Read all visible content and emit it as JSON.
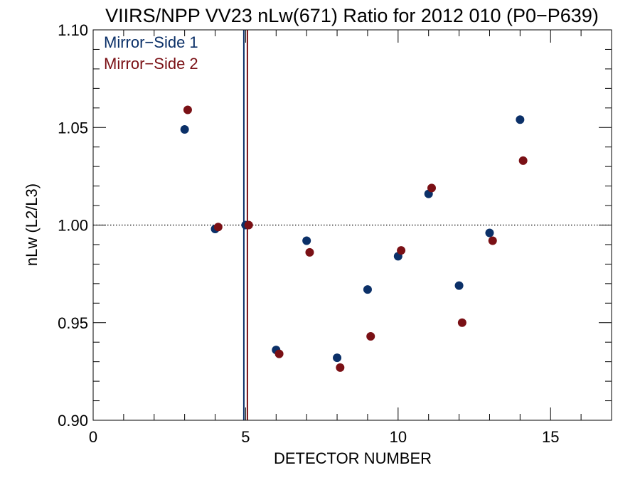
{
  "chart_data": {
    "type": "scatter",
    "title": "VIIRS/NPP VV23 nLw(671) Ratio for 2012 010 (P0−P639)",
    "xlabel": "DETECTOR NUMBER",
    "ylabel": "nLw (L2/L3)",
    "xlim": [
      0,
      17
    ],
    "ylim": [
      0.9,
      1.1
    ],
    "x_ticks": [
      0,
      5,
      10,
      15
    ],
    "x_tick_labels": [
      "0",
      "5",
      "10",
      "15"
    ],
    "y_ticks": [
      0.9,
      0.95,
      1.0,
      1.05,
      1.1
    ],
    "y_tick_labels": [
      "0.90",
      "0.95",
      "1.00",
      "1.05",
      "1.10"
    ],
    "reference_line_y": 1.0,
    "legend_position": "top-left",
    "series": [
      {
        "name": "Mirror−Side 1",
        "color": "#0b3068",
        "marker_vline_x": 5,
        "points": [
          {
            "x": 3,
            "y": 1.049
          },
          {
            "x": 4,
            "y": 0.998
          },
          {
            "x": 5,
            "y": 1.0
          },
          {
            "x": 6,
            "y": 0.936
          },
          {
            "x": 7,
            "y": 0.992
          },
          {
            "x": 8,
            "y": 0.932
          },
          {
            "x": 9,
            "y": 0.967
          },
          {
            "x": 10,
            "y": 0.984
          },
          {
            "x": 11,
            "y": 1.016
          },
          {
            "x": 12,
            "y": 0.969
          },
          {
            "x": 13,
            "y": 0.996
          },
          {
            "x": 14,
            "y": 1.054
          }
        ]
      },
      {
        "name": "Mirror−Side 2",
        "color": "#7a1015",
        "marker_vline_x": 5,
        "points": [
          {
            "x": 3,
            "y": 1.059
          },
          {
            "x": 4,
            "y": 0.999
          },
          {
            "x": 5,
            "y": 1.0
          },
          {
            "x": 6,
            "y": 0.934
          },
          {
            "x": 7,
            "y": 0.986
          },
          {
            "x": 8,
            "y": 0.927
          },
          {
            "x": 9,
            "y": 0.943
          },
          {
            "x": 10,
            "y": 0.987
          },
          {
            "x": 11,
            "y": 1.019
          },
          {
            "x": 12,
            "y": 0.95
          },
          {
            "x": 13,
            "y": 0.992
          },
          {
            "x": 14,
            "y": 1.033
          }
        ]
      }
    ]
  }
}
